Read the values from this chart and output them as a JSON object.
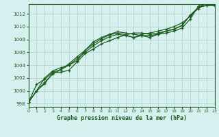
{
  "title": "Graphe pression niveau de la mer (hPa)",
  "background_color": "#d6f0f0",
  "grid_color": "#b8d8d0",
  "line_color": "#1e5c1e",
  "xlim": [
    0,
    23
  ],
  "ylim": [
    997.5,
    1013.5
  ],
  "yticks": [
    998,
    1000,
    1002,
    1004,
    1006,
    1008,
    1010,
    1012
  ],
  "xticks": [
    0,
    1,
    2,
    3,
    4,
    5,
    6,
    7,
    8,
    9,
    10,
    11,
    12,
    13,
    14,
    15,
    16,
    17,
    18,
    19,
    20,
    21,
    22,
    23
  ],
  "series": [
    [
      998.2,
      1000.0,
      1001.1,
      1002.8,
      1002.9,
      1003.2,
      1004.5,
      1005.8,
      1006.5,
      1007.3,
      1007.8,
      1008.3,
      1008.7,
      1009.0,
      1009.0,
      1008.8,
      1009.0,
      1009.3,
      1009.6,
      1010.2,
      1011.8,
      1013.0,
      1013.3,
      1013.3
    ],
    [
      998.2,
      1001.0,
      1001.8,
      1002.9,
      1003.3,
      1004.2,
      1005.3,
      1006.3,
      1007.3,
      1008.1,
      1008.7,
      1009.0,
      1008.7,
      1008.3,
      1008.6,
      1008.6,
      1008.8,
      1009.0,
      1009.3,
      1009.8,
      1011.2,
      1013.2,
      1013.5,
      1013.3
    ],
    [
      998.2,
      1000.0,
      1002.0,
      1003.1,
      1003.6,
      1004.0,
      1004.7,
      1006.3,
      1007.6,
      1008.3,
      1008.8,
      1009.2,
      1009.0,
      1008.8,
      1008.6,
      1008.3,
      1008.8,
      1009.3,
      1009.6,
      1010.2,
      1011.8,
      1012.8,
      1013.8,
      1013.3
    ],
    [
      998.2,
      1000.0,
      1001.3,
      1002.6,
      1003.3,
      1004.0,
      1005.0,
      1006.0,
      1007.0,
      1007.8,
      1008.4,
      1008.8,
      1008.6,
      1008.3,
      1008.8,
      1009.0,
      1009.3,
      1009.6,
      1010.0,
      1010.6,
      1011.6,
      1013.0,
      1013.3,
      1013.3
    ]
  ]
}
